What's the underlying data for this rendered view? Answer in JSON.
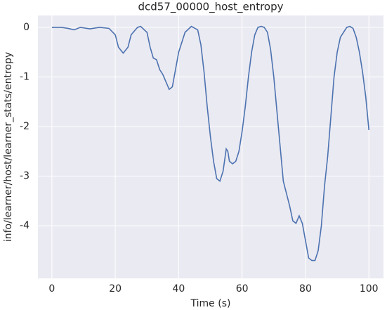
{
  "chart_data": {
    "type": "line",
    "title": "dcd57_00000_host_entropy",
    "x_label": "Time (s)",
    "y_label": "info/learner/host/learner_stats/entropy",
    "x": [
      0,
      3,
      5,
      7,
      9,
      12,
      15,
      18,
      20,
      21,
      22.5,
      24,
      25,
      27,
      28,
      30,
      31,
      32,
      33,
      34,
      35,
      36,
      37,
      38,
      39,
      40,
      42,
      44,
      46,
      47,
      48,
      49,
      50,
      51,
      52,
      53,
      54,
      55,
      55.5,
      56,
      57,
      58,
      59,
      60,
      61,
      62,
      63,
      64,
      65,
      66,
      67,
      68,
      69,
      70,
      71,
      72,
      73,
      74,
      75,
      76,
      77,
      78,
      79,
      80,
      81,
      82,
      83,
      84,
      85,
      86,
      87,
      88,
      89,
      90,
      91,
      93,
      94,
      95,
      96,
      97,
      98,
      99,
      100
    ],
    "series": [
      {
        "name": "entropy",
        "color": "#4c72b0",
        "values": [
          0,
          0,
          -0.02,
          -0.05,
          0,
          -0.03,
          0,
          -0.02,
          -0.15,
          -0.4,
          -0.52,
          -0.4,
          -0.15,
          0,
          0.02,
          -0.1,
          -0.4,
          -0.62,
          -0.65,
          -0.85,
          -0.95,
          -1.1,
          -1.25,
          -1.2,
          -0.85,
          -0.5,
          -0.1,
          0.02,
          -0.05,
          -0.35,
          -0.9,
          -1.6,
          -2.2,
          -2.7,
          -3.05,
          -3.1,
          -2.9,
          -2.45,
          -2.5,
          -2.7,
          -2.75,
          -2.7,
          -2.5,
          -2.1,
          -1.6,
          -1.0,
          -0.5,
          -0.15,
          0,
          0.02,
          0,
          -0.1,
          -0.45,
          -1.0,
          -1.7,
          -2.4,
          -3.1,
          -3.35,
          -3.6,
          -3.9,
          -3.95,
          -3.8,
          -3.95,
          -4.3,
          -4.65,
          -4.7,
          -4.7,
          -4.5,
          -4.0,
          -3.2,
          -2.6,
          -1.8,
          -1.0,
          -0.5,
          -0.2,
          0,
          0.02,
          -0.02,
          -0.2,
          -0.5,
          -0.9,
          -1.4,
          -2.07
        ]
      }
    ],
    "xlim": [
      -4.4,
      104.6
    ],
    "ylim": [
      -5.06,
      0.24
    ],
    "xticks": [
      0,
      20,
      40,
      60,
      80,
      100
    ],
    "yticks": [
      -4,
      -3,
      -2,
      -1,
      0
    ],
    "grid": true
  }
}
